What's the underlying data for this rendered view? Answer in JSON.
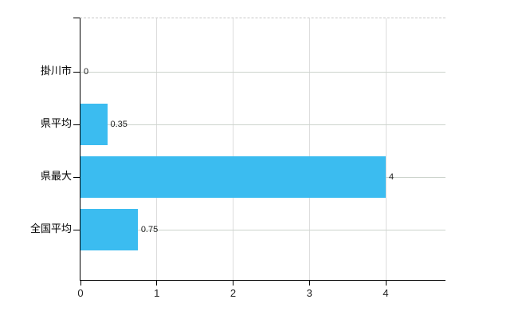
{
  "chart_data": {
    "type": "bar",
    "orientation": "horizontal",
    "title": "",
    "xlabel": "",
    "ylabel": "",
    "categories": [
      "掛川市",
      "県平均",
      "県最大",
      "全国平均"
    ],
    "values": [
      0,
      0.35,
      4,
      0.75
    ],
    "value_labels": [
      "0",
      "0.35",
      "4",
      "0.75"
    ],
    "xticks": [
      0,
      1,
      2,
      3,
      4
    ],
    "xtick_labels": [
      "0",
      "1",
      "2",
      "3",
      "4"
    ],
    "xlim": [
      0,
      4.8
    ],
    "grid": true,
    "legend": false,
    "colors": {
      "bar": "#3BBCF0",
      "axis": "#000000",
      "vertical_grid": "#dddddd",
      "horizontal_grid": "#ccd3cc",
      "top_border": "#c8c8c8",
      "value_text": "#222222",
      "tick_text": "#222222"
    }
  }
}
